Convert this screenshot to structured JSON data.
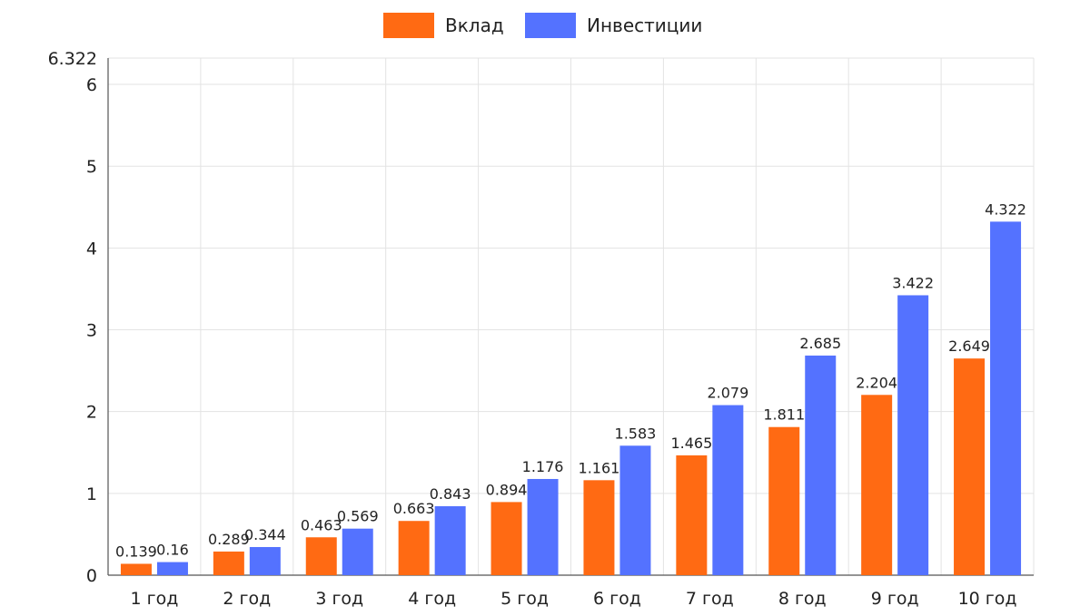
{
  "chart_data": {
    "type": "bar",
    "categories": [
      "1 год",
      "2 год",
      "3 год",
      "4 год",
      "5 год",
      "6 год",
      "7 год",
      "8 год",
      "9 год",
      "10 год"
    ],
    "series": [
      {
        "name": "Вклад",
        "color": "#ff6a13",
        "values": [
          0.139,
          0.289,
          0.463,
          0.663,
          0.894,
          1.161,
          1.465,
          1.811,
          2.204,
          2.649
        ]
      },
      {
        "name": "Инвестиции",
        "color": "#5472ff",
        "values": [
          0.16,
          0.344,
          0.569,
          0.843,
          1.176,
          1.583,
          2.079,
          2.685,
          3.422,
          4.322
        ]
      }
    ],
    "data_labels": [
      [
        "0.139",
        "0.289",
        "0.463",
        "0.663",
        "0.894",
        "1.161",
        "1.465",
        "1.811",
        "2.204",
        "2.649"
      ],
      [
        "0.16",
        "0.344",
        "0.569",
        "0.843",
        "1.176",
        "1.583",
        "2.079",
        "2.685",
        "3.422",
        "4.322"
      ]
    ],
    "y_ticks": [
      0,
      1,
      2,
      3,
      4,
      5,
      6
    ],
    "y_tick_labels": [
      "0",
      "1",
      "2",
      "3",
      "4",
      "5",
      "6"
    ],
    "y_max_label": "6.322",
    "ylim": [
      0,
      6.322
    ],
    "grid": true,
    "legend_position": "top-center",
    "title": "",
    "xlabel": "",
    "ylabel": ""
  }
}
